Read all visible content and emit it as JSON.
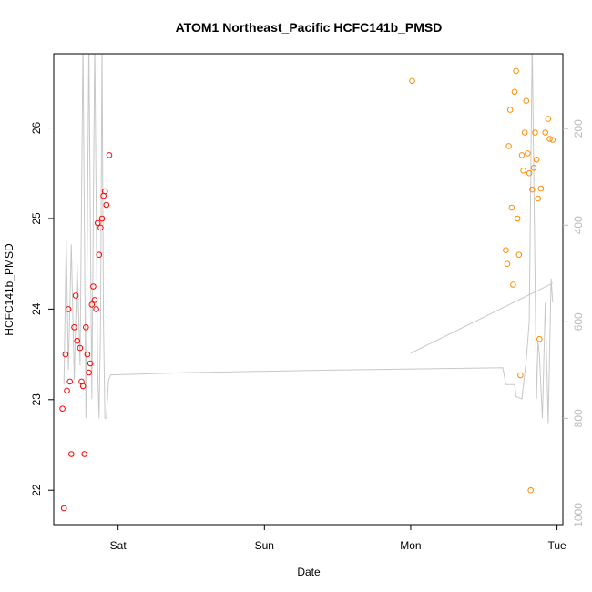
{
  "chart_data": {
    "type": "scatter",
    "title": "ATOM1 Northeast_Pacific HCFC141b_PMSD",
    "xlabel": "Date",
    "ylabel": "HCFC141b_PMSD",
    "x_ticks": [
      {
        "label": "Sat",
        "value": 1.0
      },
      {
        "label": "Sun",
        "value": 2.0
      },
      {
        "label": "Mon",
        "value": 3.0
      },
      {
        "label": "Tue",
        "value": 4.0
      }
    ],
    "xlim": [
      0.56,
      4.04
    ],
    "ylim": [
      21.62,
      26.82
    ],
    "y_ticks": [
      22,
      23,
      24,
      25,
      26
    ],
    "y2_ticks": [
      200,
      400,
      600,
      800,
      1000
    ],
    "y2lim": [
      1020,
      45
    ],
    "grid": false,
    "series": [
      {
        "color": "#ff0000",
        "points": [
          [
            0.62,
            22.9
          ],
          [
            0.63,
            21.8
          ],
          [
            0.64,
            23.5
          ],
          [
            0.65,
            23.1
          ],
          [
            0.66,
            24.0
          ],
          [
            0.67,
            23.2
          ],
          [
            0.68,
            22.4
          ],
          [
            0.7,
            23.8
          ],
          [
            0.71,
            24.15
          ],
          [
            0.72,
            23.65
          ],
          [
            0.74,
            23.57
          ],
          [
            0.75,
            23.2
          ],
          [
            0.76,
            23.15
          ],
          [
            0.77,
            22.4
          ],
          [
            0.78,
            23.8
          ],
          [
            0.79,
            23.5
          ],
          [
            0.8,
            23.3
          ],
          [
            0.81,
            23.4
          ],
          [
            0.82,
            24.05
          ],
          [
            0.83,
            24.25
          ],
          [
            0.84,
            24.1
          ],
          [
            0.85,
            24.0
          ],
          [
            0.86,
            24.95
          ],
          [
            0.87,
            24.6
          ],
          [
            0.88,
            24.9
          ],
          [
            0.89,
            25.0
          ],
          [
            0.9,
            25.25
          ],
          [
            0.91,
            25.3
          ],
          [
            0.92,
            25.15
          ],
          [
            0.94,
            25.7
          ]
        ]
      },
      {
        "color": "#ff8c00",
        "points": [
          [
            3.01,
            26.52
          ],
          [
            3.65,
            24.65
          ],
          [
            3.66,
            24.5
          ],
          [
            3.67,
            25.8
          ],
          [
            3.68,
            26.2
          ],
          [
            3.69,
            25.12
          ],
          [
            3.7,
            24.27
          ],
          [
            3.71,
            26.4
          ],
          [
            3.72,
            26.63
          ],
          [
            3.73,
            25.0
          ],
          [
            3.74,
            24.6
          ],
          [
            3.75,
            23.27
          ],
          [
            3.76,
            25.7
          ],
          [
            3.77,
            25.53
          ],
          [
            3.78,
            25.95
          ],
          [
            3.79,
            26.3
          ],
          [
            3.8,
            25.72
          ],
          [
            3.81,
            25.5
          ],
          [
            3.82,
            22.0
          ],
          [
            3.83,
            25.32
          ],
          [
            3.84,
            25.56
          ],
          [
            3.85,
            25.95
          ],
          [
            3.86,
            25.65
          ],
          [
            3.87,
            25.22
          ],
          [
            3.88,
            23.67
          ],
          [
            3.89,
            25.33
          ],
          [
            3.92,
            25.95
          ],
          [
            3.94,
            26.1
          ],
          [
            3.95,
            25.88
          ],
          [
            3.97,
            25.87
          ]
        ]
      }
    ],
    "line_series": {
      "color": "#c8c8c8",
      "axis": "right",
      "points": [
        [
          0.63,
          730
        ],
        [
          0.645,
          430
        ],
        [
          0.66,
          700
        ],
        [
          0.68,
          440
        ],
        [
          0.7,
          720
        ],
        [
          0.72,
          480
        ],
        [
          0.74,
          690
        ],
        [
          0.76,
          20
        ],
        [
          0.78,
          800
        ],
        [
          0.8,
          20
        ],
        [
          0.82,
          760
        ],
        [
          0.84,
          20
        ],
        [
          0.86,
          700
        ],
        [
          0.87,
          800
        ],
        [
          0.88,
          600
        ],
        [
          0.89,
          20
        ],
        [
          0.9,
          600
        ],
        [
          0.91,
          800
        ],
        [
          0.92,
          800
        ],
        [
          0.935,
          720
        ],
        [
          0.95,
          710
        ],
        [
          1.5,
          705
        ],
        [
          2.5,
          700
        ],
        [
          3.63,
          695
        ],
        [
          3.65,
          730
        ],
        [
          3.71,
          730
        ],
        [
          3.72,
          755
        ],
        [
          3.76,
          760
        ],
        [
          3.79,
          680
        ],
        [
          3.81,
          600
        ],
        [
          3.83,
          20
        ],
        [
          3.86,
          760
        ],
        [
          3.87,
          640
        ],
        [
          3.88,
          670
        ],
        [
          3.9,
          800
        ],
        [
          3.92,
          560
        ],
        [
          3.94,
          810
        ],
        [
          3.96,
          510
        ],
        [
          3.97,
          560
        ]
      ],
      "second_segment": [
        [
          3.0,
          665
        ],
        [
          3.97,
          520
        ]
      ]
    }
  }
}
